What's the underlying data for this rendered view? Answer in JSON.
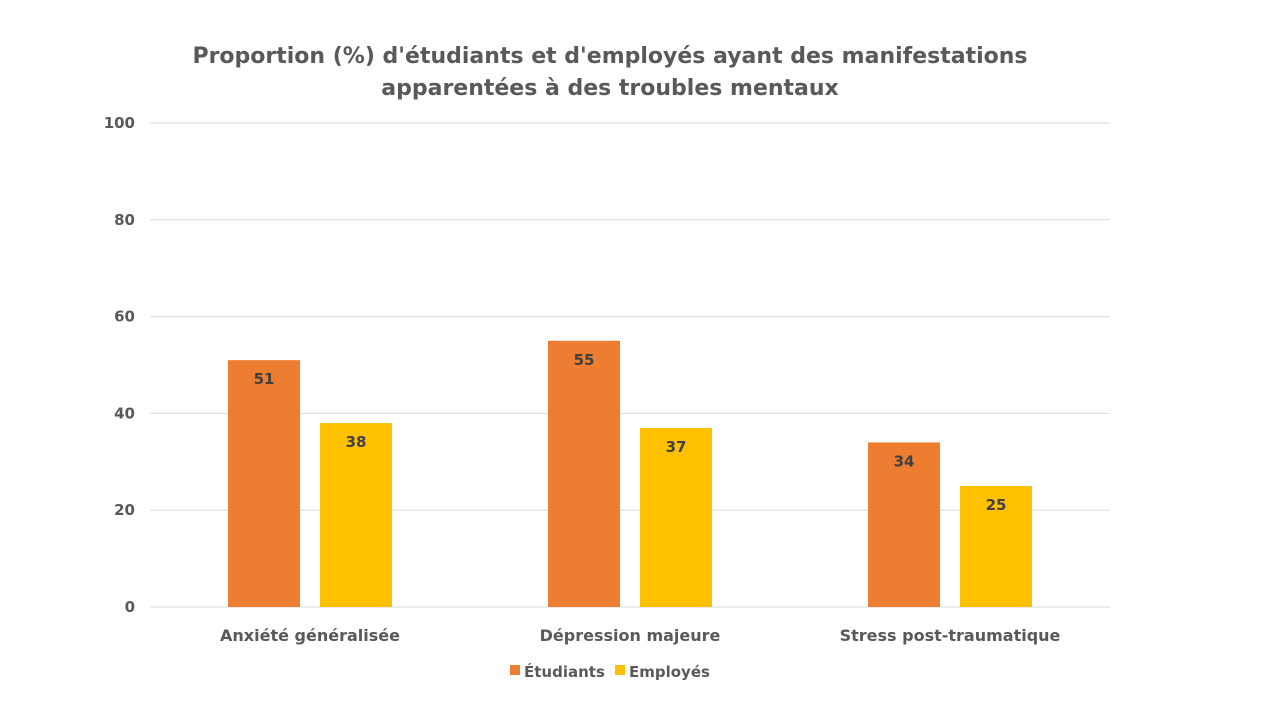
{
  "chart_data": {
    "type": "bar",
    "title": [
      "Proportion (%) d'étudiants et d'employés ayant des manifestations",
      "apparentées à des troubles mentaux"
    ],
    "xlabel": "",
    "ylabel": "",
    "categories": [
      "Anxiété généralisée",
      "Dépression majeure",
      "Stress post-traumatique"
    ],
    "series": [
      {
        "name": "Étudiants",
        "values": [
          51,
          55,
          34
        ],
        "color": "#ED7D31"
      },
      {
        "name": "Employés",
        "values": [
          38,
          37,
          25
        ],
        "color": "#FFC000"
      }
    ],
    "ylim": [
      0,
      100
    ],
    "yticks": [
      0,
      20,
      40,
      60,
      80,
      100
    ],
    "grid": true,
    "data_labels": true,
    "legend": "bottom"
  }
}
